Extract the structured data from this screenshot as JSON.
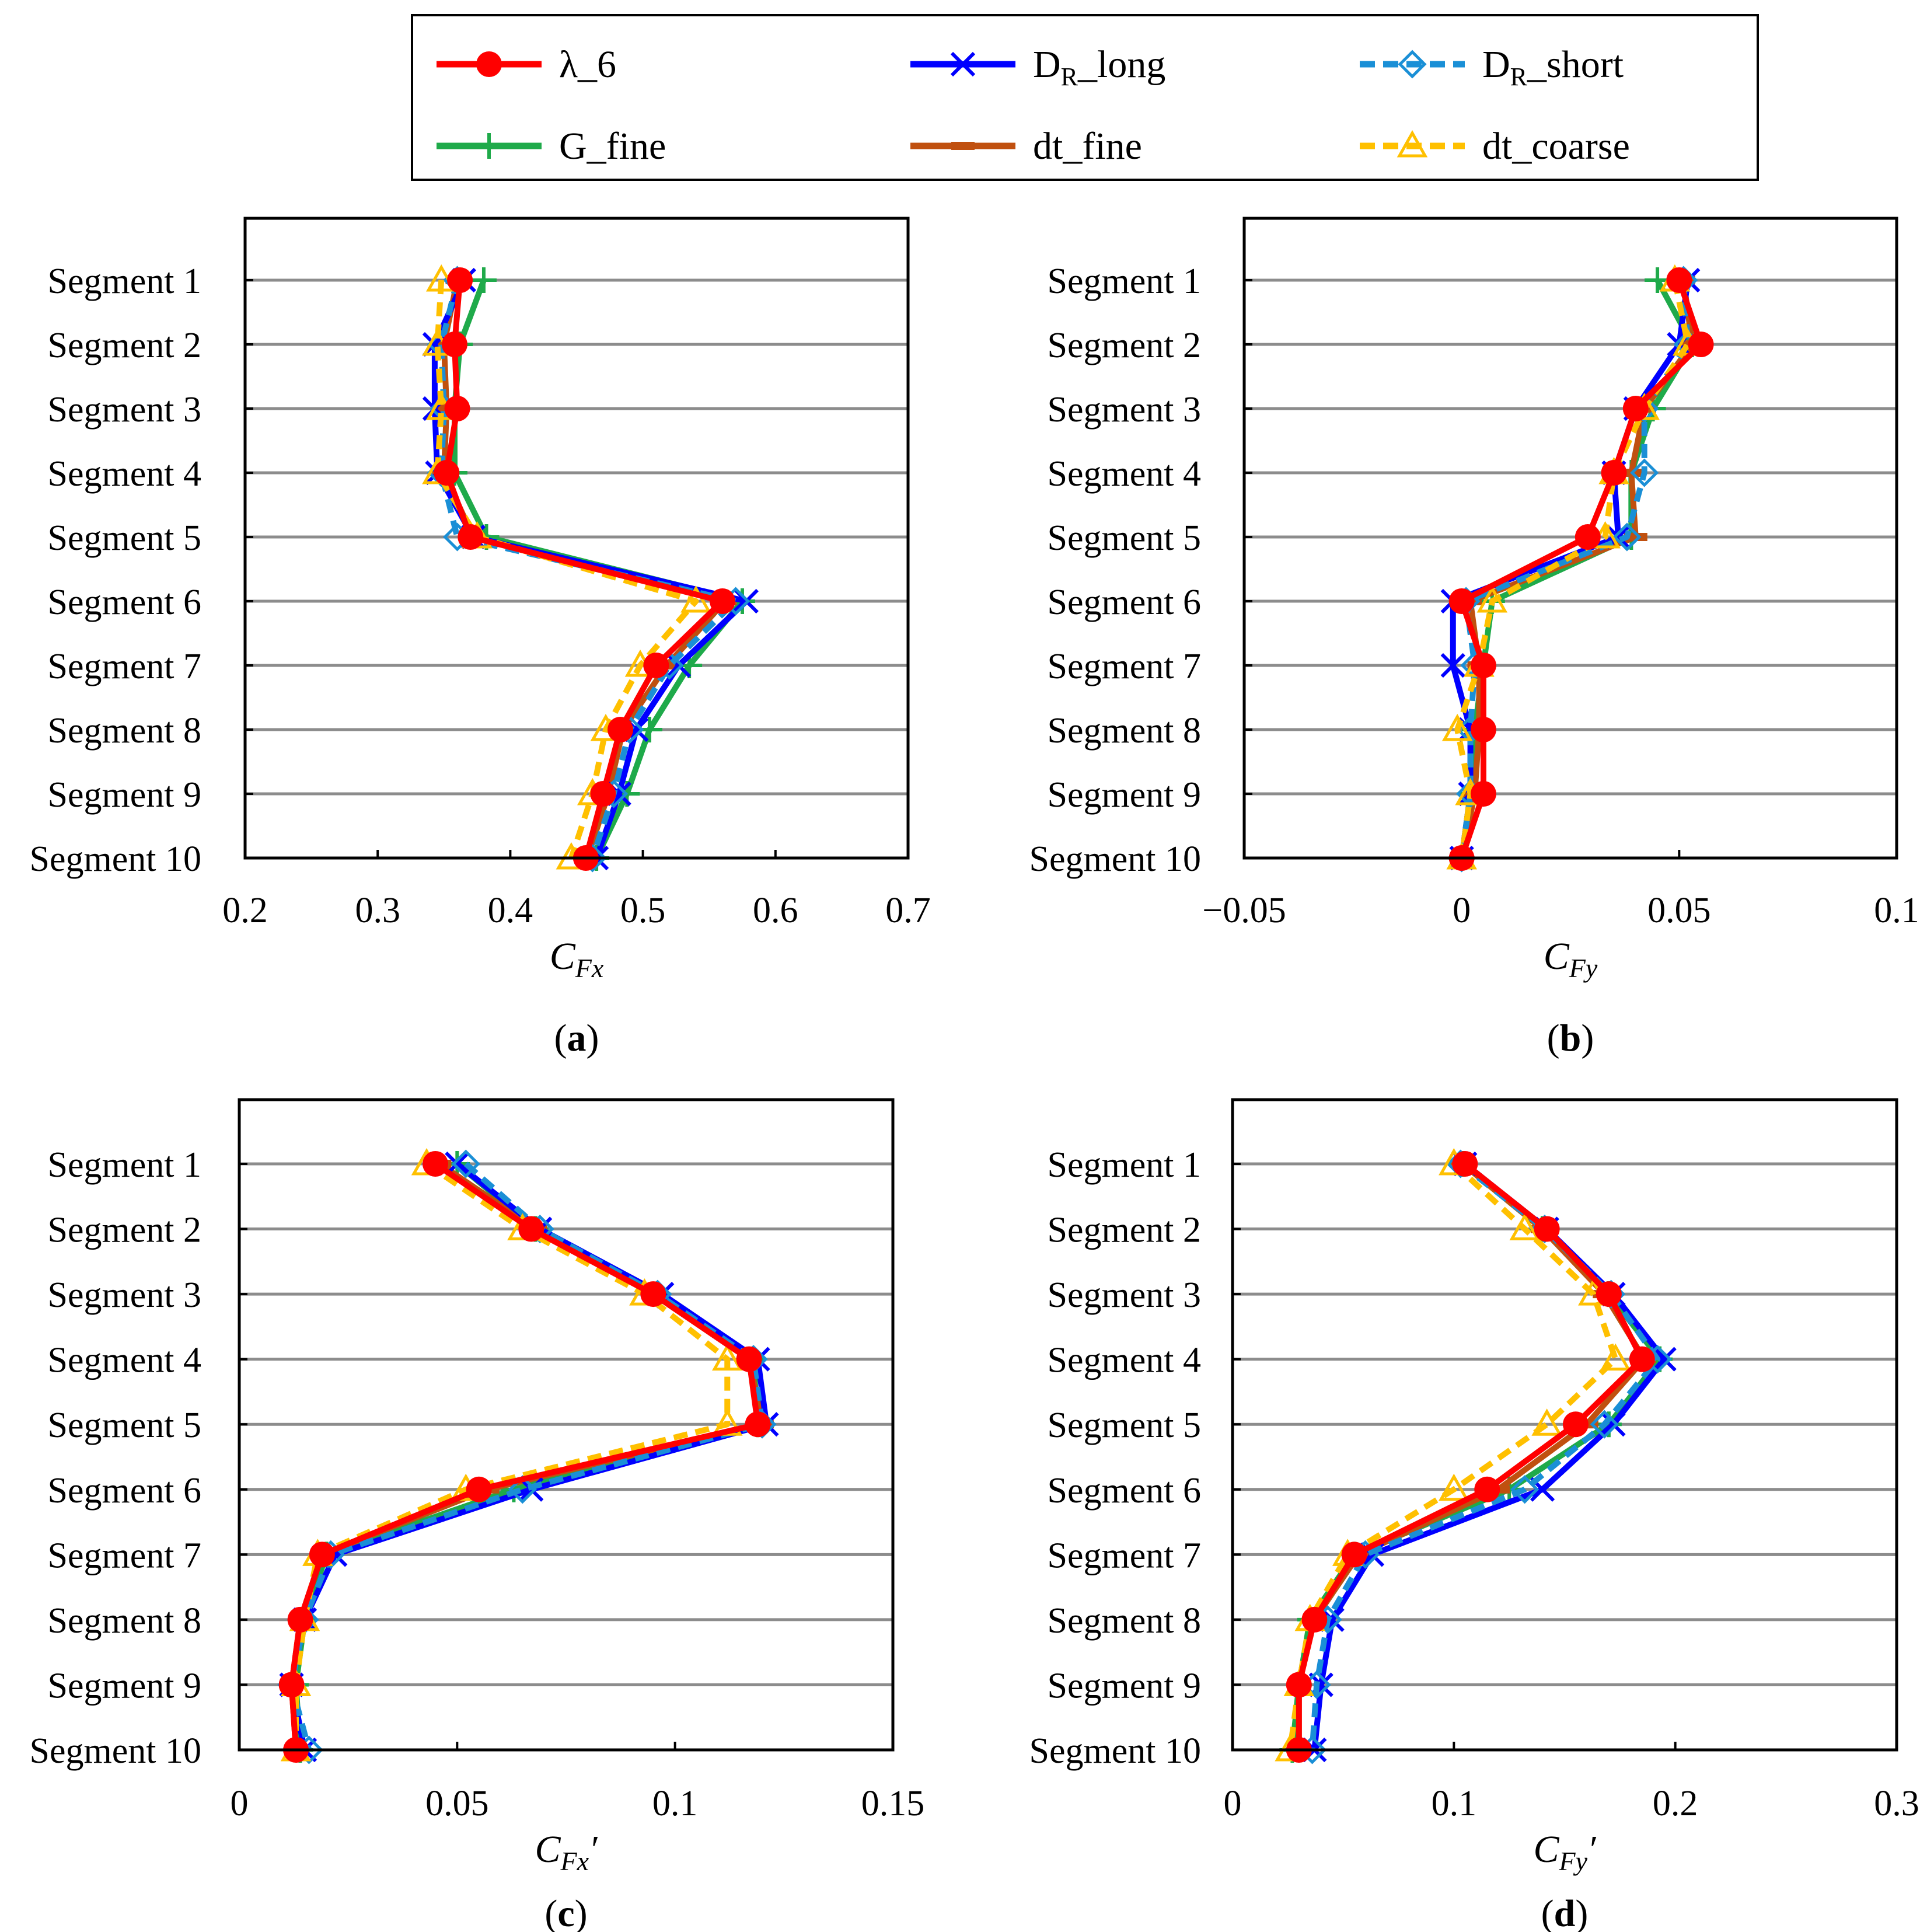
{
  "legend": {
    "items": [
      {
        "id": "lambda6",
        "label": "λ_6",
        "color": "#ff0000",
        "marker": "circle",
        "dash": false
      },
      {
        "id": "dr_long",
        "label_main": "D",
        "label_sub": "R",
        "label_rest": "_long",
        "color": "#0000ff",
        "marker": "x",
        "dash": false
      },
      {
        "id": "dr_short",
        "label_main": "D",
        "label_sub": "R",
        "label_rest": "_short",
        "color": "#1a8fd6",
        "marker": "diamond",
        "dash": true
      },
      {
        "id": "g_fine",
        "label": "G_fine",
        "color": "#1faa4a",
        "marker": "plus",
        "dash": false
      },
      {
        "id": "dt_fine",
        "label": "dt_fine",
        "color": "#c0500f",
        "marker": "dash",
        "dash": false
      },
      {
        "id": "dt_coarse",
        "label": "dt_coarse",
        "color": "#ffc000",
        "marker": "triangle",
        "dash": true
      }
    ]
  },
  "chart_data": [
    {
      "type": "line",
      "panel": "(a)",
      "panel_letter": "a",
      "xlabel_main": "C",
      "xlabel_sub": "Fx",
      "xlabel_prime": "",
      "xlim": [
        0.2,
        0.7
      ],
      "xticks": [
        0.2,
        0.3,
        0.4,
        0.5,
        0.6,
        0.7
      ],
      "xtick_labels": [
        "0.2",
        "0.3",
        "0.4",
        "0.5",
        "0.6",
        "0.7"
      ],
      "categories": [
        "Segment 1",
        "Segment 2",
        "Segment 3",
        "Segment 4",
        "Segment 5",
        "Segment 6",
        "Segment 7",
        "Segment 8",
        "Segment 9",
        "Segment 10"
      ],
      "series": [
        {
          "name": "λ_6",
          "values": [
            0.362,
            0.358,
            0.36,
            0.352,
            0.37,
            0.56,
            0.51,
            0.483,
            0.47,
            0.457
          ]
        },
        {
          "name": "D_R_long",
          "values": [
            0.365,
            0.343,
            0.343,
            0.345,
            0.372,
            0.578,
            0.527,
            0.495,
            0.482,
            0.465
          ]
        },
        {
          "name": "D_R_short",
          "values": [
            0.36,
            0.348,
            0.35,
            0.348,
            0.36,
            0.57,
            0.52,
            0.49,
            0.478,
            0.462
          ]
        },
        {
          "name": "G_fine",
          "values": [
            0.38,
            0.362,
            0.358,
            0.358,
            0.382,
            0.575,
            0.535,
            0.505,
            0.488,
            0.465
          ]
        },
        {
          "name": "dt_fine",
          "values": [
            0.36,
            0.35,
            0.352,
            0.35,
            0.372,
            0.562,
            0.518,
            0.485,
            0.474,
            0.458
          ]
        },
        {
          "name": "dt_coarse",
          "values": [
            0.348,
            0.345,
            0.348,
            0.345,
            0.375,
            0.54,
            0.498,
            0.472,
            0.462,
            0.446
          ]
        }
      ]
    },
    {
      "type": "line",
      "panel": "(b)",
      "panel_letter": "b",
      "xlabel_main": "C",
      "xlabel_sub": "Fy",
      "xlabel_prime": "",
      "xlim": [
        -0.05,
        0.1
      ],
      "xticks": [
        -0.05,
        0,
        0.05,
        0.1
      ],
      "xtick_labels": [
        "−0.05",
        "0",
        "0.05",
        "0.1"
      ],
      "categories": [
        "Segment 1",
        "Segment 2",
        "Segment 3",
        "Segment 4",
        "Segment 5",
        "Segment 6",
        "Segment 7",
        "Segment 8",
        "Segment 9",
        "Segment 10"
      ],
      "series": [
        {
          "name": "λ_6",
          "values": [
            0.05,
            0.055,
            0.04,
            0.035,
            0.029,
            0.0,
            0.005,
            0.005,
            0.005,
            0.0
          ]
        },
        {
          "name": "D_R_long",
          "values": [
            0.052,
            0.05,
            0.04,
            0.035,
            0.036,
            -0.002,
            -0.002,
            0.002,
            0.002,
            0.0
          ]
        },
        {
          "name": "D_R_short",
          "values": [
            0.051,
            0.052,
            0.042,
            0.042,
            0.038,
            0.001,
            0.003,
            0.002,
            0.002,
            0.0
          ]
        },
        {
          "name": "G_fine",
          "values": [
            0.045,
            0.053,
            0.044,
            0.039,
            0.039,
            0.007,
            0.005,
            0.003,
            0.002,
            0.0
          ]
        },
        {
          "name": "dt_fine",
          "values": [
            0.051,
            0.053,
            0.042,
            0.039,
            0.04,
            0.002,
            0.004,
            0.004,
            0.003,
            0.0
          ]
        },
        {
          "name": "dt_coarse",
          "values": [
            0.049,
            0.052,
            0.042,
            0.035,
            0.033,
            0.007,
            0.004,
            -0.001,
            0.002,
            0.0
          ]
        }
      ]
    },
    {
      "type": "line",
      "panel": "(c)",
      "panel_letter": "c",
      "xlabel_main": "C",
      "xlabel_sub": "Fx",
      "xlabel_prime": "′",
      "xlim": [
        0,
        0.15
      ],
      "xticks": [
        0,
        0.05,
        0.1,
        0.15
      ],
      "xtick_labels": [
        "0",
        "0.05",
        "0.1",
        "0.15"
      ],
      "categories": [
        "Segment 1",
        "Segment 2",
        "Segment 3",
        "Segment 4",
        "Segment 5",
        "Segment 6",
        "Segment 7",
        "Segment 8",
        "Segment 9",
        "Segment 10"
      ],
      "series": [
        {
          "name": "λ_6",
          "values": [
            0.045,
            0.067,
            0.095,
            0.117,
            0.119,
            0.055,
            0.019,
            0.014,
            0.012,
            0.013
          ]
        },
        {
          "name": "D_R_long",
          "values": [
            0.05,
            0.069,
            0.097,
            0.119,
            0.121,
            0.067,
            0.022,
            0.015,
            0.012,
            0.015
          ]
        },
        {
          "name": "D_R_short",
          "values": [
            0.052,
            0.069,
            0.096,
            0.118,
            0.12,
            0.065,
            0.021,
            0.015,
            0.012,
            0.016
          ]
        },
        {
          "name": "G_fine",
          "values": [
            0.05,
            0.068,
            0.096,
            0.118,
            0.119,
            0.063,
            0.02,
            0.015,
            0.013,
            0.014
          ]
        },
        {
          "name": "dt_fine",
          "values": [
            0.046,
            0.068,
            0.095,
            0.117,
            0.12,
            0.057,
            0.019,
            0.014,
            0.012,
            0.013
          ]
        },
        {
          "name": "dt_coarse",
          "values": [
            0.043,
            0.065,
            0.093,
            0.112,
            0.112,
            0.052,
            0.018,
            0.015,
            0.013,
            0.013
          ]
        }
      ]
    },
    {
      "type": "line",
      "panel": "(d)",
      "panel_letter": "d",
      "xlabel_main": "C",
      "xlabel_sub": "Fy",
      "xlabel_prime": "′",
      "xlim": [
        0,
        0.3
      ],
      "xticks": [
        0,
        0.1,
        0.2,
        0.3
      ],
      "xtick_labels": [
        "0",
        "0.1",
        "0.2",
        "0.3"
      ],
      "categories": [
        "Segment 1",
        "Segment 2",
        "Segment 3",
        "Segment 4",
        "Segment 5",
        "Segment 6",
        "Segment 7",
        "Segment 8",
        "Segment 9",
        "Segment 10"
      ],
      "series": [
        {
          "name": "λ_6",
          "values": [
            0.105,
            0.142,
            0.17,
            0.185,
            0.155,
            0.115,
            0.055,
            0.037,
            0.03,
            0.03
          ]
        },
        {
          "name": "D_R_long",
          "values": [
            0.105,
            0.142,
            0.172,
            0.195,
            0.172,
            0.14,
            0.063,
            0.045,
            0.04,
            0.037
          ]
        },
        {
          "name": "D_R_short",
          "values": [
            0.103,
            0.141,
            0.171,
            0.192,
            0.168,
            0.132,
            0.06,
            0.043,
            0.038,
            0.036
          ]
        },
        {
          "name": "G_fine",
          "values": [
            0.104,
            0.14,
            0.17,
            0.193,
            0.17,
            0.125,
            0.055,
            0.035,
            0.03,
            0.027
          ]
        },
        {
          "name": "dt_fine",
          "values": [
            0.104,
            0.14,
            0.168,
            0.186,
            0.16,
            0.12,
            0.057,
            0.037,
            0.03,
            0.03
          ]
        },
        {
          "name": "dt_coarse",
          "values": [
            0.1,
            0.132,
            0.163,
            0.173,
            0.142,
            0.1,
            0.052,
            0.035,
            0.03,
            0.026
          ]
        }
      ]
    }
  ]
}
